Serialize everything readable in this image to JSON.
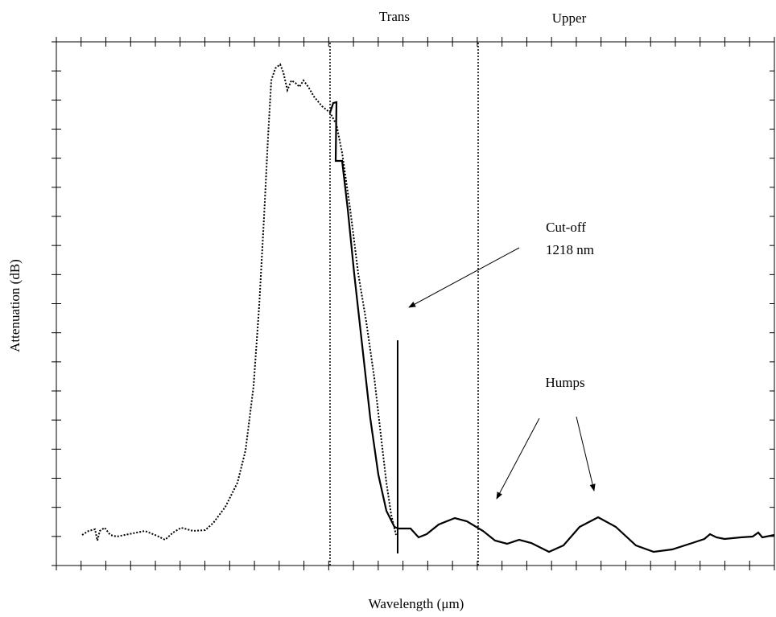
{
  "chart_data": {
    "type": "line",
    "xlabel": "Wavelength (μm)",
    "ylabel": "Attenuation (dB)",
    "xlim": [
      0,
      892
    ],
    "ylim": [
      0,
      651
    ],
    "series": [
      {
        "color": "#000000",
        "style": "dotted",
        "x": [
          32,
          40,
          48,
          51,
          54,
          60,
          67,
          75,
          90,
          110,
          125,
          135,
          145,
          155,
          170,
          185,
          195,
          210,
          225,
          235,
          245,
          252,
          258,
          263,
          267,
          272,
          278,
          282,
          287,
          292,
          297,
          302,
          307,
          313,
          320,
          330,
          340,
          348,
          355,
          365,
          375,
          385,
          395,
          403,
          410,
          416,
          422
        ],
        "values": [
          38,
          43,
          45,
          31,
          43,
          47,
          38,
          36,
          39,
          43,
          37,
          32,
          41,
          47,
          43,
          44,
          53,
          73,
          103,
          143,
          223,
          323,
          433,
          533,
          603,
          618,
          623,
          613,
          591,
          603,
          600,
          595,
          603,
          595,
          583,
          571,
          563,
          548,
          513,
          443,
          363,
          303,
          233,
          163,
          103,
          63,
          38
        ]
      },
      {
        "color": "#000000",
        "style": "solid",
        "x": [
          340,
          344,
          348,
          347,
          355,
          362,
          370,
          380,
          390,
          400,
          410,
          420,
          425,
          440,
          450,
          460,
          475,
          495,
          510,
          530,
          545,
          560,
          575,
          590,
          612,
          630,
          650,
          673,
          695,
          720,
          742,
          765,
          790,
          805,
          812,
          820,
          830,
          850,
          865,
          872,
          877,
          892
        ],
        "values": [
          563,
          575,
          576,
          503,
          503,
          443,
          363,
          273,
          183,
          113,
          68,
          48,
          46,
          46,
          35,
          39,
          51,
          59,
          55,
          43,
          31,
          27,
          32,
          28,
          17,
          25,
          48,
          60,
          48,
          25,
          17,
          20,
          28,
          33,
          39,
          35,
          33,
          35,
          36,
          41,
          35,
          38
        ]
      }
    ],
    "reference_lines": [
      {
        "x": 340,
        "style": "dotted"
      },
      {
        "x": 524,
        "style": "dotted"
      },
      {
        "x": 424,
        "ymin": 15,
        "ymax": 280,
        "style": "solid"
      }
    ],
    "annotations": [
      "Trans",
      "Upper",
      "Cut-off",
      "1218 nm",
      "Humps"
    ]
  }
}
